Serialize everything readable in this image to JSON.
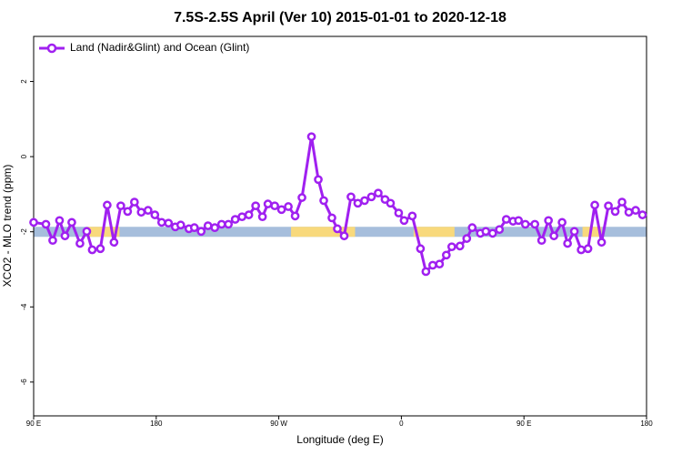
{
  "chart_data": {
    "type": "line",
    "title": "7.5S-2.5S April (Ver 10)   2015-01-01 to 2020-12-18",
    "x_label": "Longitude (deg E)",
    "y_label": "XCO2 - MLO trend (ppm)",
    "xlim": [
      90,
      540
    ],
    "ylim": [
      -6.9,
      3.2
    ],
    "xticks": [
      {
        "value": 90,
        "label": "90 E"
      },
      180,
      {
        "value": 270,
        "label": "90 W"
      },
      {
        "value": 360,
        "label": "0"
      },
      {
        "value": 450,
        "label": "90 E"
      },
      {
        "value": 540,
        "label": "180"
      }
    ],
    "yticks": [
      -6,
      -4,
      -2,
      0,
      2
    ],
    "legend_position": "top-left",
    "bands": {
      "y": -2,
      "segments": [
        {
          "from": 90,
          "to": 540,
          "color": "#a6bedc"
        },
        {
          "from": 129,
          "to": 153,
          "color": "#f8d97c"
        },
        {
          "from": 279,
          "to": 326,
          "color": "#f8d97c"
        },
        {
          "from": 369,
          "to": 399,
          "color": "#f8d97c"
        },
        {
          "from": 493,
          "to": 507,
          "color": "#f8d97c"
        }
      ]
    },
    "series": [
      {
        "name": "Land (Nadir&Glint) and Ocean (Glint)",
        "color": "#a020f0",
        "x": [
          90,
          99,
          104,
          109,
          113,
          118,
          124,
          129,
          133,
          139,
          144,
          149,
          154,
          159,
          164,
          169,
          174,
          179,
          184,
          189,
          194,
          198,
          204,
          208,
          213,
          218,
          223,
          228,
          233,
          238,
          243,
          248,
          253,
          258,
          262,
          267,
          272,
          277,
          282,
          287,
          294,
          299,
          303,
          309,
          313,
          318,
          323,
          328,
          333,
          338,
          343,
          348,
          352,
          358,
          362,
          368,
          374,
          378,
          383,
          388,
          393,
          397,
          403,
          408,
          412,
          418,
          422,
          427,
          432,
          437,
          442,
          446,
          451,
          458,
          463,
          468,
          472,
          478,
          482,
          487,
          492,
          497,
          502,
          507,
          512,
          517,
          522,
          527,
          532,
          537
        ],
        "values": [
          -1.75,
          -1.8,
          -2.23,
          -1.7,
          -2.11,
          -1.75,
          -2.31,
          -1.99,
          -2.48,
          -2.45,
          -1.29,
          -2.28,
          -1.31,
          -1.46,
          -1.21,
          -1.48,
          -1.43,
          -1.55,
          -1.75,
          -1.77,
          -1.87,
          -1.82,
          -1.92,
          -1.89,
          -1.99,
          -1.84,
          -1.89,
          -1.8,
          -1.8,
          -1.67,
          -1.6,
          -1.55,
          -1.31,
          -1.6,
          -1.26,
          -1.31,
          -1.41,
          -1.33,
          -1.58,
          -1.09,
          0.53,
          -0.61,
          -1.17,
          -1.63,
          -1.92,
          -2.11,
          -1.07,
          -1.24,
          -1.17,
          -1.07,
          -0.97,
          -1.14,
          -1.24,
          -1.5,
          -1.7,
          -1.58,
          -2.45,
          -3.06,
          -2.89,
          -2.86,
          -2.62,
          -2.4,
          -2.38,
          -2.18,
          -1.89,
          -2.04,
          -1.99,
          -2.04,
          -1.94,
          -1.67,
          -1.72,
          -1.7,
          -1.8,
          -1.8,
          -2.23,
          -1.7,
          -2.11,
          -1.75,
          -2.31,
          -1.99,
          -2.48,
          -2.45,
          -1.29,
          -2.28,
          -1.31,
          -1.46,
          -1.21,
          -1.48,
          -1.43,
          -1.55
        ]
      }
    ]
  }
}
